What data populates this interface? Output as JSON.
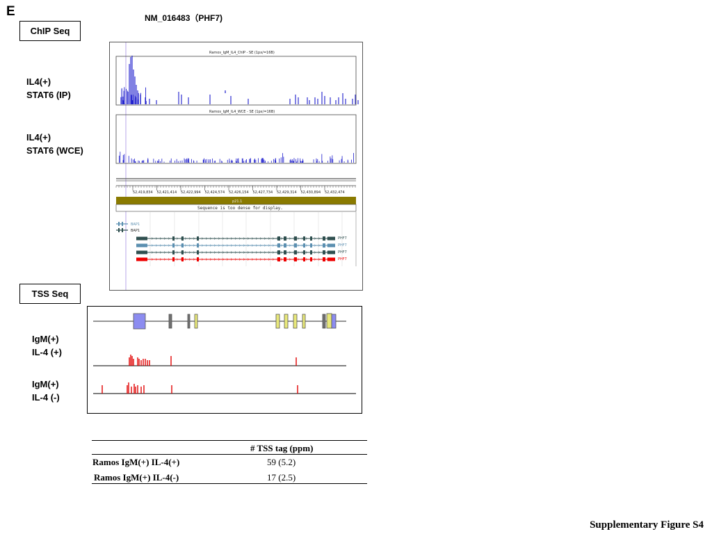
{
  "panel_letter": "E",
  "gene_title": "NM_016483（PHF7)",
  "chip_section": {
    "label": "ChIP Seq",
    "tracks": [
      {
        "line1": "IL4(+)",
        "line2": "STAT6 (IP)",
        "header": "Ramos_IgM_IL4_ChIP - SE (1px/=16B)"
      },
      {
        "line1": "IL4(+)",
        "line2": "STAT6 (WCE)",
        "header": "Ramos_IgM_IL4_WCE - SE (1px/=16B)"
      }
    ],
    "coords": [
      "52,419,834",
      "52,421,414",
      "52,422,994",
      "52,424,574",
      "52,426,154",
      "52,427,734",
      "52,429,314",
      "52,430,894",
      "52,432,474"
    ],
    "contig_label": "p21.1",
    "sequence_note": "Sequence is too dense for display.",
    "gene_labels": [
      "BAP1",
      "BAP1",
      "PHF7",
      "PHF7",
      "PHF7",
      "PHF7"
    ]
  },
  "tss_section": {
    "label": "TSS Seq",
    "tracks": [
      {
        "line1": "IgM(+)",
        "line2": "IL-4 (+)"
      },
      {
        "line1": "IgM(+)",
        "line2": "IL-4 (-)"
      }
    ]
  },
  "table": {
    "header": "# TSS tag (ppm)",
    "rows": [
      {
        "label": "Ramos IgM(+) IL-4(+)",
        "value": "59  (5.2)"
      },
      {
        "label": "Ramos IgM(+) IL-4(-)",
        "value": "17  (2.5)"
      }
    ]
  },
  "footer": "Supplementary Figure S4",
  "colors": {
    "chip_signal": "#1a1acc",
    "tss_signal": "#e00000",
    "contig_bar": "#8a7a00",
    "exon_blue": "#8c8cf0",
    "exon_yellow": "#e8e87a",
    "exon_gray": "#707070",
    "transcript_dark": "#2f4f4f",
    "transcript_light": "#5b8fb0",
    "transcript_red": "#ee0000"
  }
}
